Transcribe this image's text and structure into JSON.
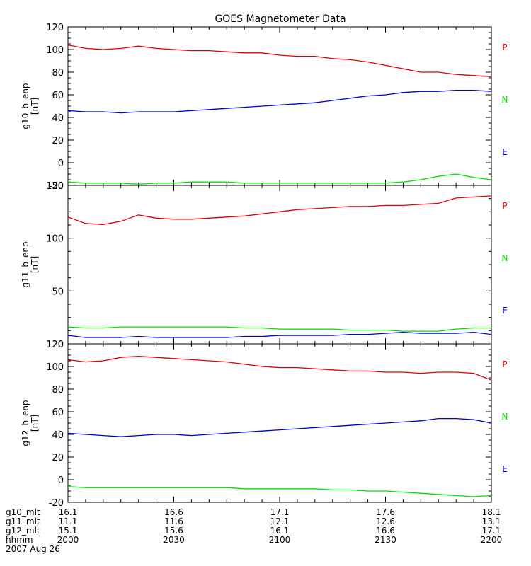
{
  "chart_data": {
    "type": "line",
    "title": "GOES Magnetometer Data",
    "x_tick_labels": {
      "g10_mlt": [
        "16.1",
        "16.6",
        "17.1",
        "17.6",
        "18.1"
      ],
      "g11_mlt": [
        "11.1",
        "11.6",
        "12.1",
        "12.6",
        "13.1"
      ],
      "g12_mlt": [
        "15.1",
        "15.6",
        "16.1",
        "16.6",
        "17.1"
      ],
      "hhmm": [
        "2000",
        "2030",
        "2100",
        "2130",
        "2200"
      ]
    },
    "row_labels": [
      "g10_mlt",
      "g11_mlt",
      "g12_mlt",
      "hhmm"
    ],
    "date_label": "2007 Aug 26",
    "xlim": [
      0,
      120
    ],
    "x_unit": "minutes after 2000 UT",
    "grid": false,
    "legend_placement": "right of each panel",
    "panels": [
      {
        "ylabel": "g10_b_enp",
        "yunit": "[nT]",
        "ylim": [
          -20,
          120
        ],
        "yticks": [
          -20,
          0,
          20,
          40,
          60,
          80,
          100,
          120
        ],
        "legend": [
          "P",
          "N",
          "E"
        ],
        "series": [
          {
            "name": "P",
            "color": "#e00000",
            "x": [
              0,
              5,
              10,
              15,
              20,
              25,
              30,
              35,
              40,
              45,
              50,
              55,
              60,
              65,
              70,
              75,
              80,
              85,
              90,
              95,
              100,
              105,
              110,
              115,
              120
            ],
            "y": [
              104,
              101,
              100,
              101,
              103,
              101,
              100,
              99,
              99,
              98,
              97,
              97,
              95,
              94,
              94,
              92,
              91,
              89,
              86,
              83,
              80,
              80,
              78,
              77,
              76
            ]
          },
          {
            "name": "N",
            "color": "#00e000",
            "x": [
              0,
              5,
              10,
              15,
              20,
              25,
              30,
              35,
              40,
              45,
              50,
              55,
              60,
              65,
              70,
              75,
              80,
              85,
              90,
              95,
              100,
              105,
              110,
              115,
              120
            ],
            "y": [
              -17,
              -18,
              -18,
              -18,
              -19,
              -18,
              -18,
              -17,
              -17,
              -17,
              -18,
              -18,
              -18,
              -18,
              -18,
              -18,
              -18,
              -18,
              -18,
              -17,
              -15,
              -12,
              -10,
              -13,
              -15
            ]
          },
          {
            "name": "E",
            "color": "#0000d0",
            "x": [
              0,
              5,
              10,
              15,
              20,
              25,
              30,
              35,
              40,
              45,
              50,
              55,
              60,
              65,
              70,
              75,
              80,
              85,
              90,
              95,
              100,
              105,
              110,
              115,
              120
            ],
            "y": [
              46,
              45,
              45,
              44,
              45,
              45,
              45,
              46,
              47,
              48,
              49,
              50,
              51,
              52,
              53,
              55,
              57,
              59,
              60,
              62,
              63,
              63,
              64,
              64,
              63
            ]
          }
        ]
      },
      {
        "ylabel": "g11_b_enp",
        "yunit": "[nT]",
        "ylim": [
          0,
          150
        ],
        "yticks": [
          0,
          50,
          100,
          150
        ],
        "legend": [
          "P",
          "N",
          "E"
        ],
        "series": [
          {
            "name": "P",
            "color": "#e00000",
            "x": [
              0,
              5,
              10,
              15,
              20,
              25,
              30,
              35,
              40,
              45,
              50,
              55,
              60,
              65,
              70,
              75,
              80,
              85,
              90,
              95,
              100,
              105,
              110,
              115,
              120
            ],
            "y": [
              120,
              114,
              113,
              116,
              122,
              119,
              118,
              118,
              119,
              120,
              121,
              123,
              125,
              127,
              128,
              129,
              130,
              130,
              131,
              131,
              132,
              133,
              138,
              139,
              140
            ]
          },
          {
            "name": "N",
            "color": "#00e000",
            "x": [
              0,
              5,
              10,
              15,
              20,
              25,
              30,
              35,
              40,
              45,
              50,
              55,
              60,
              65,
              70,
              75,
              80,
              85,
              90,
              95,
              100,
              105,
              110,
              115,
              120
            ],
            "y": [
              16,
              15,
              15,
              16,
              16,
              16,
              16,
              16,
              16,
              16,
              15,
              15,
              14,
              14,
              14,
              14,
              13,
              13,
              13,
              12,
              12,
              12,
              14,
              15,
              15
            ]
          },
          {
            "name": "E",
            "color": "#0000d0",
            "x": [
              0,
              5,
              10,
              15,
              20,
              25,
              30,
              35,
              40,
              45,
              50,
              55,
              60,
              65,
              70,
              75,
              80,
              85,
              90,
              95,
              100,
              105,
              110,
              115,
              120
            ],
            "y": [
              8,
              6,
              6,
              6,
              7,
              6,
              6,
              6,
              6,
              6,
              7,
              7,
              8,
              8,
              8,
              8,
              9,
              9,
              10,
              11,
              10,
              10,
              10,
              11,
              9
            ]
          }
        ]
      },
      {
        "ylabel": "g12_b_enp",
        "yunit": "[nT]",
        "ylim": [
          -20,
          120
        ],
        "yticks": [
          -20,
          0,
          20,
          40,
          60,
          80,
          100,
          120
        ],
        "legend": [
          "P",
          "N",
          "E"
        ],
        "series": [
          {
            "name": "P",
            "color": "#e00000",
            "x": [
              0,
              5,
              10,
              15,
              20,
              25,
              30,
              35,
              40,
              45,
              50,
              55,
              60,
              65,
              70,
              75,
              80,
              85,
              90,
              95,
              100,
              105,
              110,
              115,
              120
            ],
            "y": [
              106,
              104,
              105,
              108,
              109,
              108,
              107,
              106,
              105,
              104,
              102,
              100,
              99,
              99,
              98,
              97,
              96,
              96,
              95,
              95,
              94,
              95,
              95,
              94,
              88
            ]
          },
          {
            "name": "N",
            "color": "#00e000",
            "x": [
              0,
              5,
              10,
              15,
              20,
              25,
              30,
              35,
              40,
              45,
              50,
              55,
              60,
              65,
              70,
              75,
              80,
              85,
              90,
              95,
              100,
              105,
              110,
              115,
              120
            ],
            "y": [
              -6,
              -7,
              -7,
              -7,
              -7,
              -7,
              -7,
              -7,
              -7,
              -7,
              -8,
              -8,
              -8,
              -8,
              -8,
              -9,
              -9,
              -10,
              -10,
              -11,
              -12,
              -13,
              -14,
              -15,
              -14
            ]
          },
          {
            "name": "E",
            "color": "#0000d0",
            "x": [
              0,
              5,
              10,
              15,
              20,
              25,
              30,
              35,
              40,
              45,
              50,
              55,
              60,
              65,
              70,
              75,
              80,
              85,
              90,
              95,
              100,
              105,
              110,
              115,
              120
            ],
            "y": [
              41,
              40,
              39,
              38,
              39,
              40,
              40,
              39,
              40,
              41,
              42,
              43,
              44,
              45,
              46,
              47,
              48,
              49,
              50,
              51,
              52,
              54,
              54,
              53,
              50
            ]
          }
        ]
      }
    ]
  }
}
